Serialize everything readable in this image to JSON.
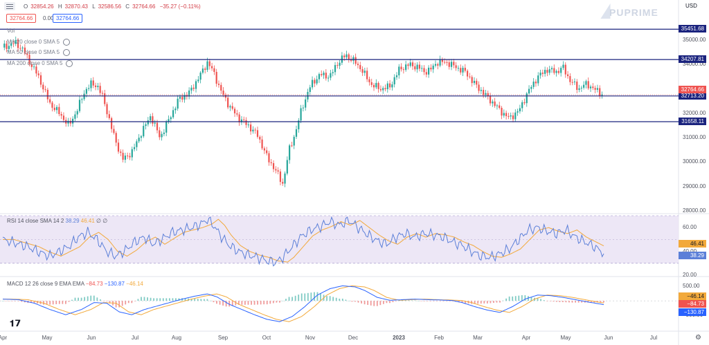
{
  "header": {
    "open_label": "O",
    "open": "32854.26",
    "high_label": "H",
    "high": "32870.43",
    "low_label": "L",
    "low": "32586.56",
    "close_label": "C",
    "close": "32764.66",
    "change": "−35.27 (−0.11%)",
    "bid": "32764.66",
    "spread": "0.00",
    "ask": "32764.66",
    "currency": "USD"
  },
  "brand": "PUPRIME",
  "legends": {
    "vol": "Vol",
    "ma1": "MA 20 close 0 SMA 5",
    "ma2": "MA 50 close 0 SMA 5",
    "ma3": "MA 200 close 0 SMA 5",
    "rsi": "RSI 14 close SMA 14 2",
    "rsi_val1": "38.29",
    "rsi_val2": "46.41",
    "rsi_val3": "∅",
    "rsi_val4": "∅",
    "macd": "MACD 12 26 close 9 EMA EMA",
    "macd_val1": "−84.73",
    "macd_val2": "−130.87",
    "macd_val3": "−46.14"
  },
  "colors": {
    "up": "#26a69a",
    "down": "#ef5350",
    "level": "#1a237e",
    "rsi_line": "#5b7fd8",
    "rsi_ma": "#f2a93b",
    "rsi_band": "#ede7f6"
  },
  "chart_data": {
    "type": "candlestick",
    "price_axis_ticks": [
      "35000.00",
      "34000.00",
      "33000.00",
      "32000.00",
      "31000.00",
      "30000.00",
      "29000.00",
      "28000.00"
    ],
    "ylim": [
      28000,
      35800
    ],
    "x_labels": [
      "Apr",
      "May",
      "Jun",
      "Jul",
      "Aug",
      "Sep",
      "Oct",
      "Nov",
      "Dec",
      "2023",
      "Feb",
      "Mar",
      "Apr",
      "May",
      "Jun",
      "Jul"
    ],
    "levels": [
      {
        "value": 35451.68,
        "label": "35451.68"
      },
      {
        "value": 34207.81,
        "label": "34207.81"
      },
      {
        "value": 32713.2,
        "label": "32713.20"
      },
      {
        "value": 31658.11,
        "label": "31658.11"
      }
    ],
    "current_price": {
      "value": 32764.66,
      "label": "32764.66"
    },
    "close_path": [
      [
        0,
        34700
      ],
      [
        8,
        34900
      ],
      [
        13,
        34600
      ],
      [
        18,
        34000
      ],
      [
        22,
        33600
      ],
      [
        30,
        32400
      ],
      [
        36,
        32000
      ],
      [
        42,
        31500
      ],
      [
        47,
        32100
      ],
      [
        52,
        32900
      ],
      [
        56,
        33200
      ],
      [
        60,
        33150
      ],
      [
        64,
        32600
      ],
      [
        70,
        31200
      ],
      [
        76,
        30100
      ],
      [
        82,
        30400
      ],
      [
        88,
        31200
      ],
      [
        94,
        31900
      ],
      [
        100,
        31000
      ],
      [
        106,
        31800
      ],
      [
        112,
        32600
      ],
      [
        118,
        32800
      ],
      [
        124,
        33400
      ],
      [
        130,
        34100
      ],
      [
        134,
        33700
      ],
      [
        138,
        33000
      ],
      [
        144,
        32300
      ],
      [
        150,
        31800
      ],
      [
        156,
        31500
      ],
      [
        162,
        31100
      ],
      [
        168,
        30200
      ],
      [
        174,
        29600
      ],
      [
        178,
        29100
      ],
      [
        182,
        30500
      ],
      [
        186,
        31200
      ],
      [
        190,
        32200
      ],
      [
        196,
        33200
      ],
      [
        202,
        33600
      ],
      [
        208,
        33500
      ],
      [
        212,
        34000
      ],
      [
        218,
        34400
      ],
      [
        224,
        34100
      ],
      [
        228,
        33800
      ],
      [
        234,
        33200
      ],
      [
        240,
        33000
      ],
      [
        246,
        33100
      ],
      [
        252,
        33800
      ],
      [
        258,
        34000
      ],
      [
        264,
        33900
      ],
      [
        268,
        33700
      ],
      [
        272,
        33800
      ],
      [
        276,
        34100
      ],
      [
        282,
        34100
      ],
      [
        288,
        33900
      ],
      [
        294,
        33700
      ],
      [
        300,
        33200
      ],
      [
        306,
        32800
      ],
      [
        312,
        32400
      ],
      [
        318,
        32000
      ],
      [
        322,
        31800
      ],
      [
        328,
        32100
      ],
      [
        334,
        32900
      ],
      [
        340,
        33500
      ],
      [
        346,
        33800
      ],
      [
        352,
        33700
      ],
      [
        356,
        33900
      ],
      [
        360,
        33400
      ],
      [
        366,
        33000
      ],
      [
        370,
        33200
      ],
      [
        374,
        33100
      ],
      [
        378,
        32900
      ],
      [
        382,
        32765
      ]
    ],
    "rsi": {
      "ylim": [
        20,
        70
      ],
      "ticks": [
        "60.00",
        "40.00",
        "20.00"
      ],
      "tick_values": [
        60,
        40,
        20
      ],
      "band": [
        30,
        70
      ],
      "mid": 50,
      "value_label": "38.29",
      "ma_label": "46.41",
      "value": 38.29,
      "ma": 46.41,
      "points": [
        [
          0,
          50
        ],
        [
          8,
          47
        ],
        [
          16,
          44
        ],
        [
          22,
          40
        ],
        [
          30,
          36
        ],
        [
          36,
          40
        ],
        [
          42,
          44
        ],
        [
          48,
          52
        ],
        [
          54,
          56
        ],
        [
          60,
          50
        ],
        [
          66,
          40
        ],
        [
          72,
          36
        ],
        [
          78,
          41
        ],
        [
          84,
          48
        ],
        [
          90,
          52
        ],
        [
          96,
          46
        ],
        [
          102,
          51
        ],
        [
          108,
          56
        ],
        [
          114,
          58
        ],
        [
          120,
          60
        ],
        [
          126,
          63
        ],
        [
          130,
          67
        ],
        [
          134,
          62
        ],
        [
          138,
          54
        ],
        [
          144,
          45
        ],
        [
          150,
          40
        ],
        [
          156,
          37
        ],
        [
          162,
          35
        ],
        [
          168,
          32
        ],
        [
          174,
          31
        ],
        [
          178,
          35
        ],
        [
          184,
          44
        ],
        [
          190,
          53
        ],
        [
          196,
          58
        ],
        [
          202,
          61
        ],
        [
          208,
          65
        ],
        [
          214,
          62
        ],
        [
          220,
          66
        ],
        [
          226,
          60
        ],
        [
          232,
          54
        ],
        [
          238,
          49
        ],
        [
          244,
          46
        ],
        [
          250,
          52
        ],
        [
          256,
          55
        ],
        [
          262,
          52
        ],
        [
          268,
          55
        ],
        [
          274,
          54
        ],
        [
          280,
          52
        ],
        [
          286,
          48
        ],
        [
          292,
          45
        ],
        [
          298,
          40
        ],
        [
          304,
          36
        ],
        [
          310,
          35
        ],
        [
          316,
          38
        ],
        [
          322,
          42
        ],
        [
          328,
          50
        ],
        [
          334,
          58
        ],
        [
          340,
          60
        ],
        [
          346,
          57
        ],
        [
          352,
          55
        ],
        [
          358,
          58
        ],
        [
          364,
          52
        ],
        [
          370,
          48
        ],
        [
          376,
          44
        ],
        [
          382,
          38.3
        ]
      ]
    },
    "macd": {
      "ylim": [
        -1000,
        600
      ],
      "ticks": [
        "500.00",
        "0.00",
        "−500.00"
      ],
      "tick_values": [
        500,
        0,
        -500
      ],
      "macd_label": "−130.87",
      "signal_label": "−46.14",
      "hist_label": "−84.73",
      "macd_value": -130.87,
      "signal_value": -46.14,
      "hist_value": -84.73,
      "points": [
        [
          0,
          60
        ],
        [
          10,
          40
        ],
        [
          20,
          -80
        ],
        [
          30,
          -300
        ],
        [
          40,
          -480
        ],
        [
          50,
          -300
        ],
        [
          58,
          -60
        ],
        [
          66,
          -80
        ],
        [
          74,
          -380
        ],
        [
          82,
          -480
        ],
        [
          90,
          -300
        ],
        [
          98,
          -180
        ],
        [
          106,
          -60
        ],
        [
          114,
          60
        ],
        [
          122,
          160
        ],
        [
          130,
          240
        ],
        [
          136,
          140
        ],
        [
          144,
          -120
        ],
        [
          152,
          -300
        ],
        [
          160,
          -480
        ],
        [
          168,
          -640
        ],
        [
          176,
          -720
        ],
        [
          184,
          -540
        ],
        [
          192,
          -200
        ],
        [
          200,
          200
        ],
        [
          208,
          420
        ],
        [
          216,
          520
        ],
        [
          224,
          480
        ],
        [
          230,
          360
        ],
        [
          238,
          120
        ],
        [
          246,
          20
        ],
        [
          254,
          40
        ],
        [
          262,
          60
        ],
        [
          270,
          40
        ],
        [
          278,
          30
        ],
        [
          286,
          10
        ],
        [
          292,
          -60
        ],
        [
          300,
          -200
        ],
        [
          308,
          -320
        ],
        [
          316,
          -400
        ],
        [
          324,
          -200
        ],
        [
          332,
          60
        ],
        [
          340,
          200
        ],
        [
          348,
          180
        ],
        [
          356,
          120
        ],
        [
          364,
          40
        ],
        [
          372,
          -40
        ],
        [
          382,
          -131
        ]
      ]
    },
    "x_units_total": 382
  }
}
